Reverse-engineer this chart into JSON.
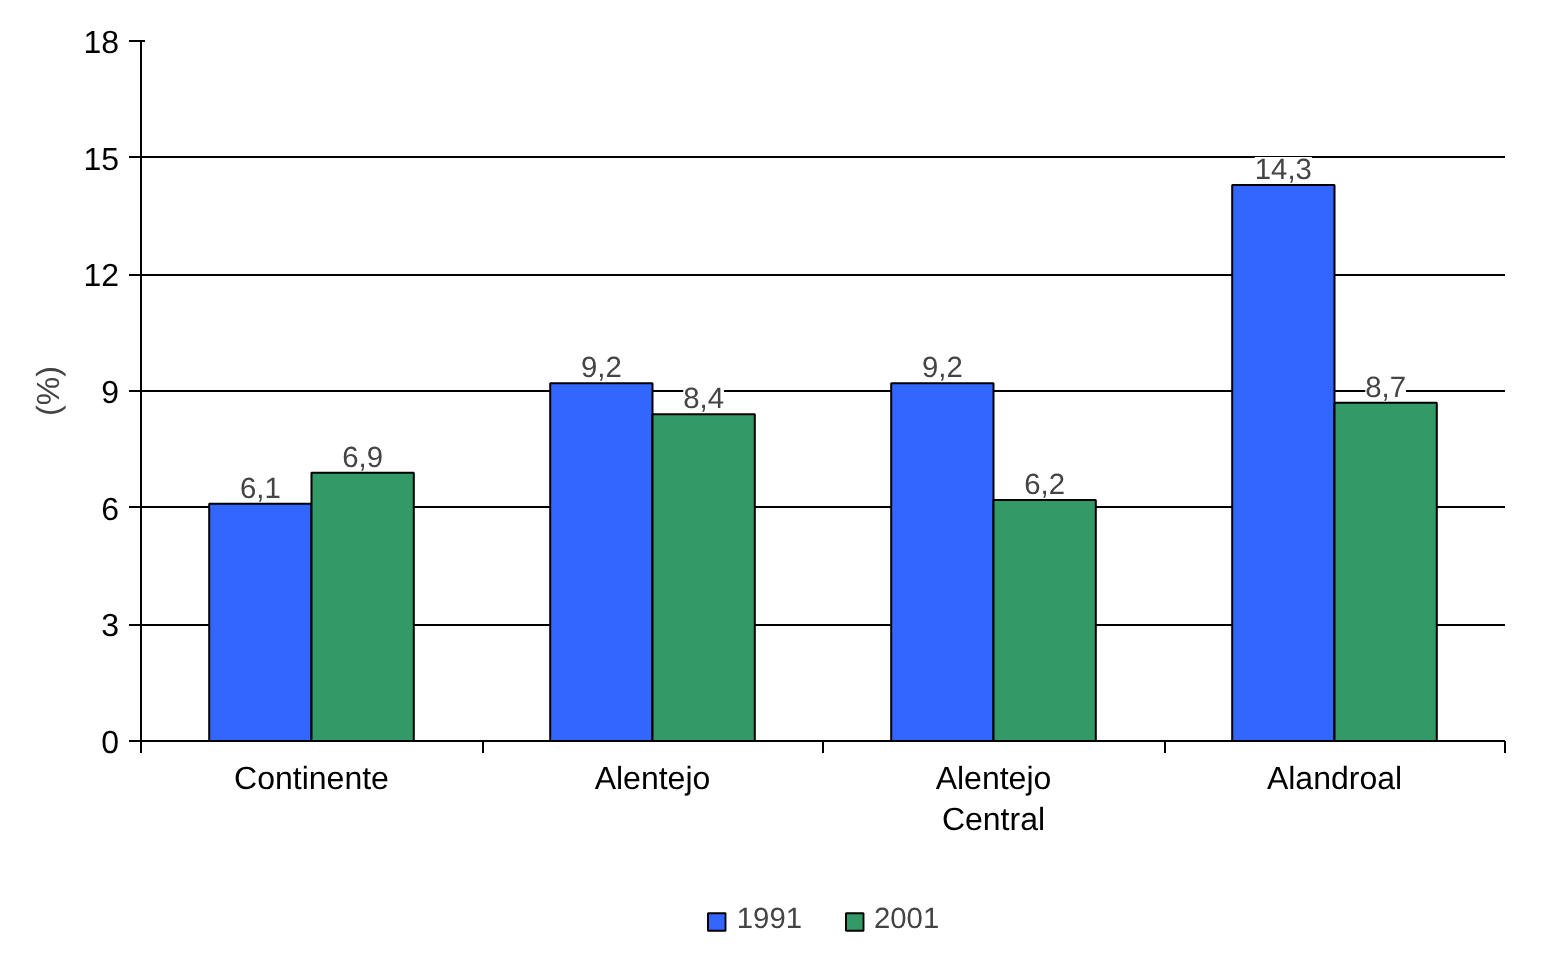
{
  "chart_data": {
    "type": "bar",
    "ylabel": "(%)",
    "categories": [
      "Continente",
      "Alentejo",
      "Alentejo Central",
      "Alandroal"
    ],
    "series": [
      {
        "name": "1991",
        "color": "#3366ff",
        "values": [
          6.1,
          9.2,
          9.2,
          14.3
        ],
        "value_labels": [
          "6,1",
          "9,2",
          "9,2",
          "14,3"
        ]
      },
      {
        "name": "2001",
        "color": "#339966",
        "values": [
          6.9,
          8.4,
          6.2,
          8.7
        ],
        "value_labels": [
          "6,9",
          "8,4",
          "6,2",
          "8,7"
        ]
      }
    ],
    "ylim": [
      0,
      18
    ],
    "yticks": [
      0,
      3,
      6,
      9,
      12,
      15,
      18
    ],
    "grid": "y",
    "legend": "bottom"
  }
}
